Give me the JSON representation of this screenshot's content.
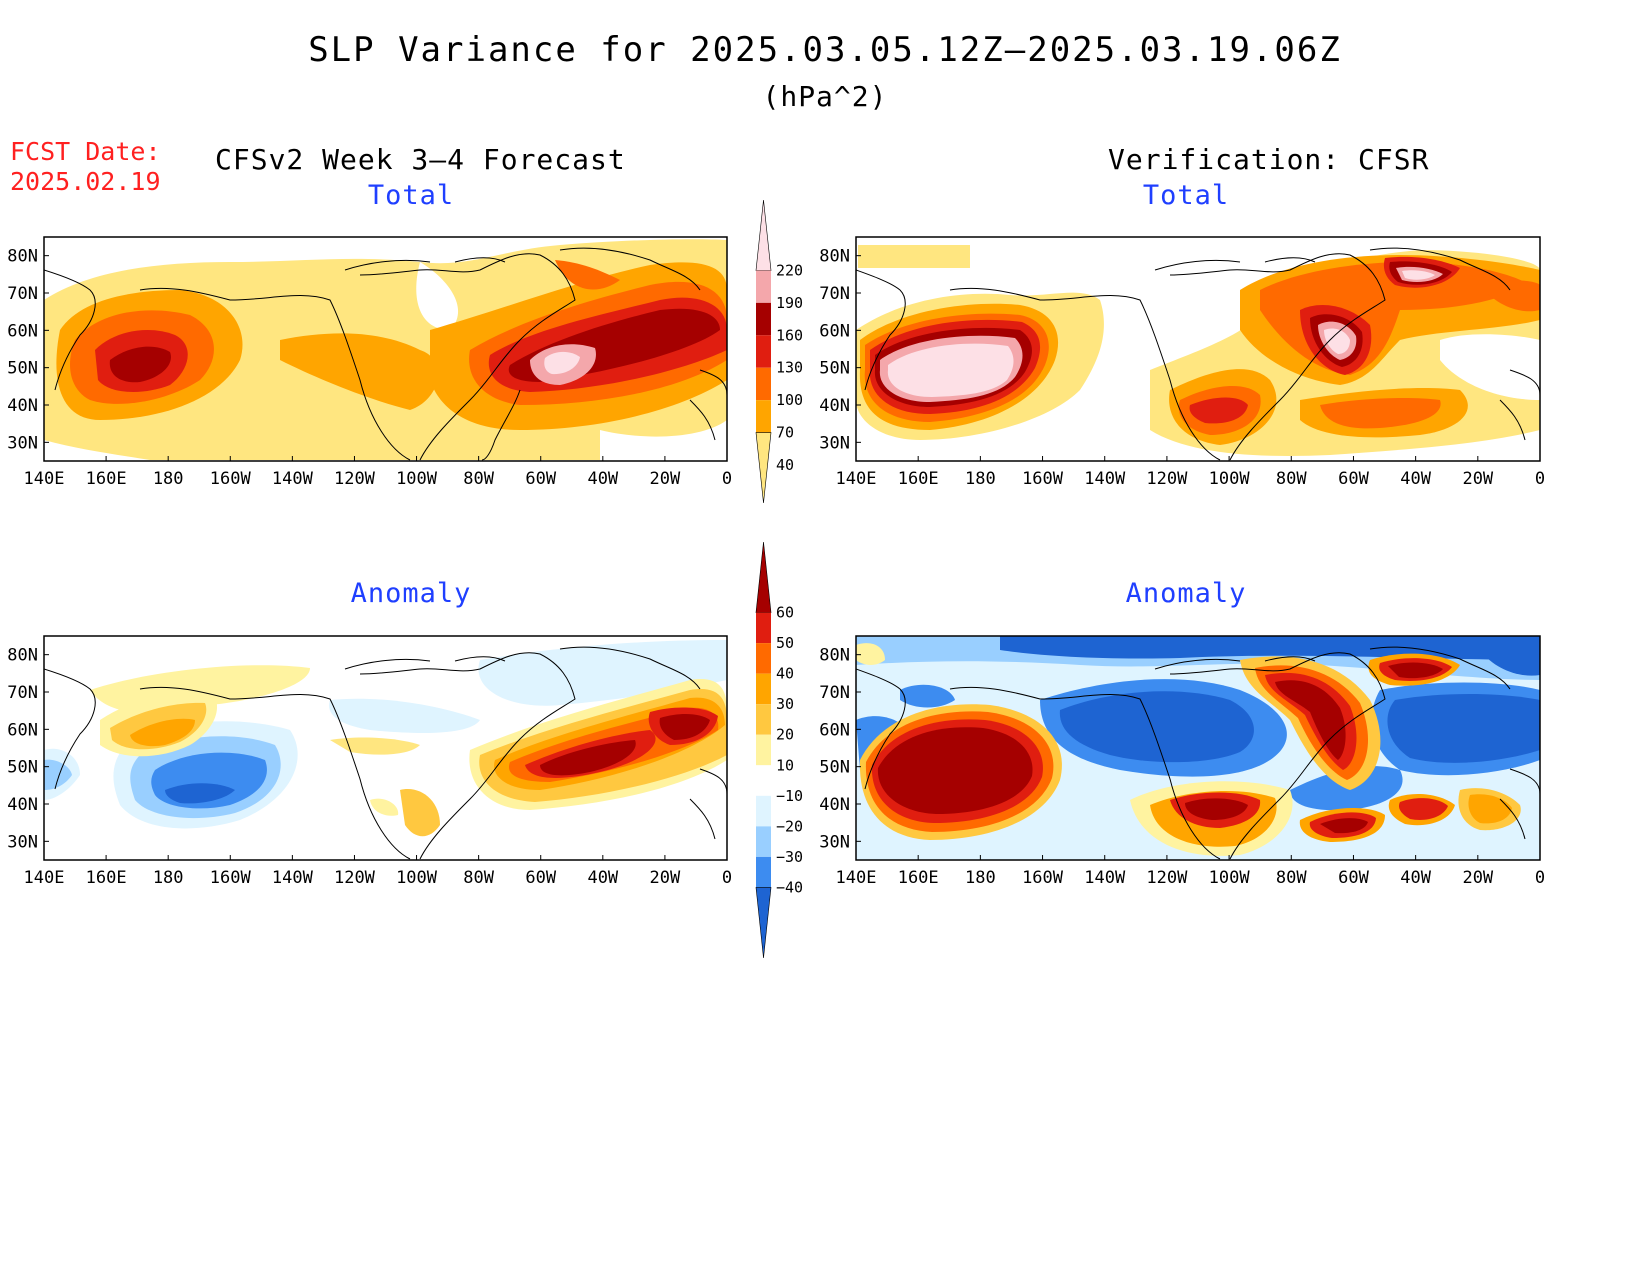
{
  "title": "SLP Variance for 2025.03.05.12Z–2025.03.19.06Z",
  "units": "(hPa^2)",
  "fcst_date_label": "FCST Date:",
  "fcst_date": "2025.02.19",
  "left_heading": "CFSv2 Week 3–4 Forecast",
  "right_heading": "Verification: CFSR",
  "panels": [
    {
      "id": "fcst-total",
      "title": "Total"
    },
    {
      "id": "verif-total",
      "title": "Total"
    },
    {
      "id": "fcst-anomaly",
      "title": "Anomaly"
    },
    {
      "id": "verif-anomaly",
      "title": "Anomaly"
    }
  ],
  "lat_ticks": [
    "80N",
    "70N",
    "60N",
    "50N",
    "40N",
    "30N"
  ],
  "lon_ticks": [
    "140E",
    "160E",
    "180",
    "160W",
    "140W",
    "120W",
    "100W",
    "80W",
    "60W",
    "40W",
    "20W",
    "0"
  ],
  "total_colorbar": {
    "labels": [
      "220",
      "190",
      "160",
      "130",
      "100",
      "70",
      "40"
    ],
    "colors": [
      "#fde0e6",
      "#f4a7ab",
      "#a50000",
      "#e01e10",
      "#ff6a00",
      "#ffa500",
      "#ffe680"
    ]
  },
  "anomaly_colorbar": {
    "labels": [
      "60",
      "50",
      "40",
      "30",
      "20",
      "10",
      "−10",
      "−20",
      "−30",
      "−40"
    ],
    "colors": [
      "#a50000",
      "#e01e10",
      "#ff6a00",
      "#ffa500",
      "#ffc840",
      "#fff3a0",
      "#ffffff",
      "#dff4ff",
      "#99cfff",
      "#3d8cf0",
      "#1e64d2"
    ]
  },
  "map_colors": {
    "ocean_bg": "#ffffff",
    "land_line": "#000000"
  }
}
